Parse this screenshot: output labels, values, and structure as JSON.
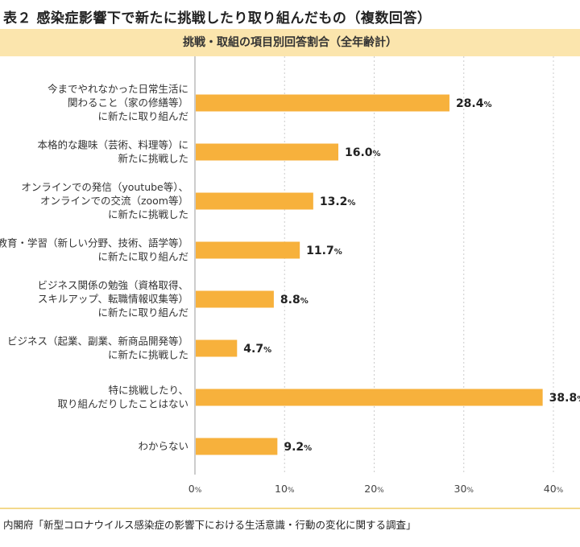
{
  "title": "表２ 感染症影響下で新たに挑戦したり取り組んだもの（複数回答）",
  "subtitle": "挑戦・取組の項目別回答割合（全年齢計）",
  "source": "内閣府「新型コロナウイルス感染症の影響下における生活意識・行動の変化に関する調査」",
  "colors": {
    "bar": "#f7b13c",
    "grid": "#cccccc",
    "subtitle_bg": "#fbe5ad"
  },
  "chart_data": {
    "type": "bar",
    "orientation": "horizontal",
    "categories": [
      [
        "今までやれなかった日常生活に",
        "関わること（家の修繕等）",
        "に新たに取り組んだ"
      ],
      [
        "本格的な趣味（芸術、料理等）に",
        "新たに挑戦した"
      ],
      [
        "オンラインでの発信（youtube等）、",
        "オンラインでの交流（zoom等）",
        "に新たに挑戦した"
      ],
      [
        "教育・学習（新しい分野、技術、語学等）",
        "に新たに取り組んだ"
      ],
      [
        "ビジネス関係の勉強（資格取得、",
        "スキルアップ、転職情報収集等）",
        "に新たに取り組んだ"
      ],
      [
        "ビジネス（起業、副業、新商品開発等）",
        "に新たに挑戦した"
      ],
      [
        "特に挑戦したり、",
        "取り組んだりしたことはない"
      ],
      [
        "わからない"
      ]
    ],
    "values": [
      28.4,
      16.0,
      13.2,
      11.7,
      8.8,
      4.7,
      38.8,
      9.2
    ],
    "value_labels": [
      "28.4",
      "16.0",
      "13.2",
      "11.7",
      "8.8",
      "4.7",
      "38.8",
      "9.2"
    ],
    "unit": "%",
    "xlim": [
      0,
      40
    ],
    "xticks": [
      0,
      10,
      20,
      30,
      40
    ],
    "xtick_labels": [
      "0",
      "10",
      "20",
      "30",
      "40"
    ],
    "grid": true
  }
}
